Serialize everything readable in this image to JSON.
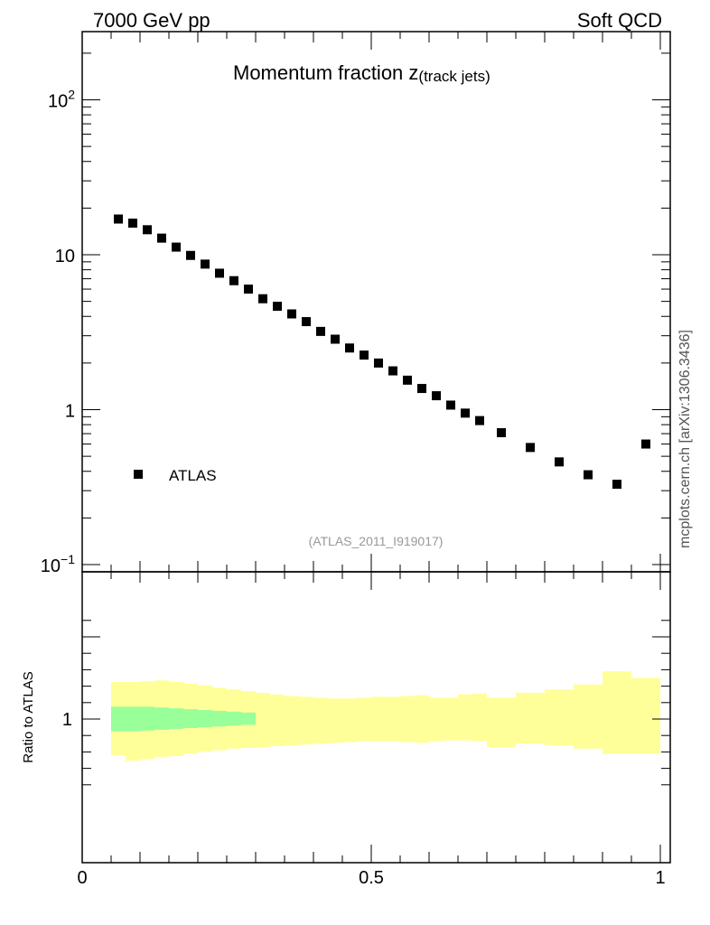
{
  "header": {
    "left": "7000 GeV pp",
    "right": "Soft QCD"
  },
  "watermark": {
    "side_label": "mcplots.cern.ch [arXiv:1306.3436]",
    "analysis_id": "(ATLAS_2011_I919017)"
  },
  "colors": {
    "data_marker": "#000000",
    "band_outer": "#ffff99",
    "band_inner": "#99ff99",
    "analysis_id_text": "#999999",
    "side_label_text": "#555555"
  },
  "chart_data": [
    {
      "type": "scatter",
      "title_main": "Momentum fraction ",
      "title_symbol": "z",
      "title_sub": "(track jets)",
      "xlabel": "",
      "ylabel": "",
      "yscale": "log",
      "xlim": [
        0,
        1
      ],
      "ylim": [
        0.09,
        270
      ],
      "ytick_labels": [
        {
          "value": 0.1,
          "base": "10",
          "exp": "−1"
        },
        {
          "value": 1,
          "base": "1",
          "exp": ""
        },
        {
          "value": 10,
          "base": "10",
          "exp": ""
        },
        {
          "value": 100,
          "base": "10",
          "exp": "2"
        }
      ],
      "legend_position": "lower-left",
      "series": [
        {
          "name": "ATLAS",
          "marker": "square",
          "x": [
            0.0625,
            0.0875,
            0.1125,
            0.1375,
            0.1625,
            0.1875,
            0.2125,
            0.2375,
            0.2625,
            0.2875,
            0.3125,
            0.3375,
            0.3625,
            0.3875,
            0.4125,
            0.4375,
            0.4625,
            0.4875,
            0.5125,
            0.5375,
            0.5625,
            0.5875,
            0.6125,
            0.6375,
            0.6625,
            0.6875,
            0.725,
            0.775,
            0.825,
            0.875,
            0.925,
            0.975
          ],
          "y": [
            17.0,
            16.0,
            14.5,
            12.8,
            11.2,
            9.9,
            8.7,
            7.6,
            6.8,
            6.0,
            5.2,
            4.65,
            4.15,
            3.7,
            3.2,
            2.85,
            2.5,
            2.25,
            2.0,
            1.78,
            1.55,
            1.37,
            1.23,
            1.07,
            0.95,
            0.85,
            0.71,
            0.57,
            0.46,
            0.38,
            0.33,
            0.6
          ]
        }
      ]
    },
    {
      "type": "area",
      "ylabel": "Ratio to ATLAS",
      "xlabel": "",
      "ylim": [
        0.5,
        1.65
      ],
      "xlim": [
        0,
        1
      ],
      "ytick_labels": [
        {
          "value": 1,
          "label": "1"
        }
      ],
      "xtick_labels": [
        {
          "value": 0,
          "label": "0"
        },
        {
          "value": 0.5,
          "label": "0.5"
        },
        {
          "value": 1,
          "label": "1"
        }
      ],
      "outer_band": {
        "edges": [
          0.05,
          0.075,
          0.1,
          0.125,
          0.15,
          0.175,
          0.2,
          0.225,
          0.25,
          0.275,
          0.3,
          0.325,
          0.35,
          0.375,
          0.4,
          0.425,
          0.45,
          0.475,
          0.5,
          0.525,
          0.55,
          0.575,
          0.6,
          0.625,
          0.65,
          0.675,
          0.7,
          0.75,
          0.8,
          0.85,
          0.9,
          0.95,
          1.0
        ],
        "low": [
          0.78,
          0.745,
          0.755,
          0.77,
          0.775,
          0.79,
          0.8,
          0.81,
          0.82,
          0.825,
          0.83,
          0.835,
          0.84,
          0.845,
          0.85,
          0.855,
          0.86,
          0.865,
          0.865,
          0.865,
          0.86,
          0.855,
          0.865,
          0.87,
          0.87,
          0.865,
          0.83,
          0.85,
          0.84,
          0.82,
          0.79,
          0.79
        ],
        "high": [
          1.225,
          1.225,
          1.23,
          1.235,
          1.225,
          1.215,
          1.205,
          1.19,
          1.18,
          1.17,
          1.16,
          1.15,
          1.14,
          1.135,
          1.13,
          1.125,
          1.125,
          1.13,
          1.135,
          1.135,
          1.14,
          1.145,
          1.13,
          1.13,
          1.15,
          1.155,
          1.13,
          1.16,
          1.18,
          1.21,
          1.29,
          1.25
        ]
      },
      "inner_band": {
        "edges": [
          0.05,
          0.075,
          0.1,
          0.125,
          0.15,
          0.175,
          0.2,
          0.225,
          0.25,
          0.275,
          0.3
        ],
        "low": [
          0.925,
          0.925,
          0.93,
          0.935,
          0.94,
          0.945,
          0.95,
          0.955,
          0.96,
          0.965
        ],
        "high": [
          1.075,
          1.075,
          1.075,
          1.07,
          1.065,
          1.06,
          1.055,
          1.05,
          1.045,
          1.04
        ]
      }
    }
  ]
}
